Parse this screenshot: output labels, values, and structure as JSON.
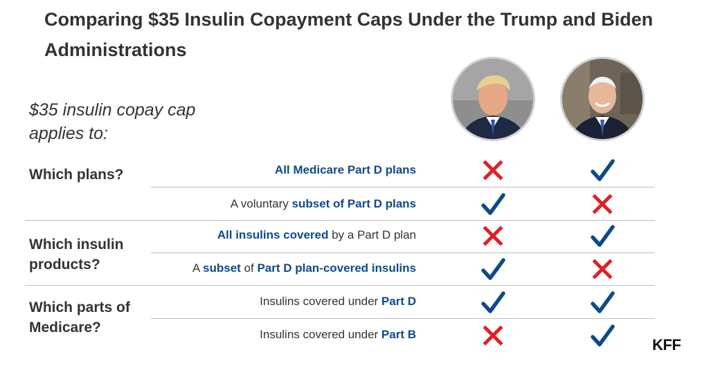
{
  "title": "Comparing $35 Insulin Copayment Caps Under the Trump and Biden Administrations",
  "subtitle": "$35 insulin copay cap applies to:",
  "colors": {
    "highlight": "#0e4a8a",
    "check": "#0e4a8a",
    "cross": "#e01f26",
    "text": "#333333",
    "divider": "#bfbfbf"
  },
  "columns": [
    {
      "icon": "trump-portrait"
    },
    {
      "icon": "biden-portrait"
    }
  ],
  "groups": [
    {
      "label": "Which plans?",
      "rows": [
        {
          "segments": [
            "",
            "All Medicare Part D plans",
            ""
          ],
          "trump": "cross-icon",
          "biden": "check-icon"
        },
        {
          "segments": [
            "A voluntary ",
            "subset of Part D plans",
            ""
          ],
          "trump": "check-icon",
          "biden": "cross-icon"
        }
      ]
    },
    {
      "label": "Which insulin products?",
      "rows": [
        {
          "segments": [
            "",
            "All insulins covered",
            " by a Part D plan"
          ],
          "trump": "cross-icon",
          "biden": "check-icon"
        },
        {
          "segments": [
            "A ",
            "subset",
            " of ",
            "Part D plan-covered insulins"
          ],
          "trump": "check-icon",
          "biden": "cross-icon"
        }
      ]
    },
    {
      "label": "Which parts of Medicare?",
      "rows": [
        {
          "segments": [
            "Insulins covered under ",
            "Part D",
            ""
          ],
          "trump": "check-icon",
          "biden": "check-icon"
        },
        {
          "segments": [
            "Insulins covered under ",
            "Part B",
            ""
          ],
          "trump": "cross-icon",
          "biden": "check-icon"
        }
      ]
    }
  ],
  "brand": "KFF"
}
